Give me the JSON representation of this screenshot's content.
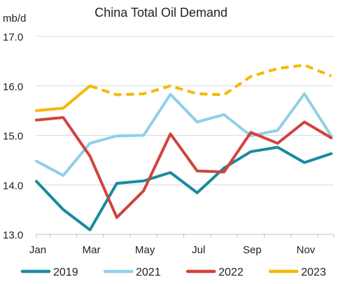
{
  "chart_data": {
    "type": "line",
    "title": "China Total Oil Demand",
    "ylabel": "mb/d",
    "xlabel": "",
    "ylim": [
      13.0,
      17.0
    ],
    "yticks": [
      "13.0",
      "14.0",
      "15.0",
      "16.0",
      "17.0"
    ],
    "categories": [
      "Jan",
      "Feb",
      "Mar",
      "Apr",
      "May",
      "Jun",
      "Jul",
      "Aug",
      "Sep",
      "Oct",
      "Nov",
      "Dec"
    ],
    "xtick_labels": [
      "Jan",
      "Mar",
      "May",
      "Jul",
      "Sep",
      "Nov"
    ],
    "grid": "horizontal",
    "legend_position": "bottom",
    "series": [
      {
        "name": "2019",
        "color": "#1a8a9e",
        "style": "solid",
        "values": [
          14.07,
          13.5,
          13.09,
          14.03,
          14.08,
          14.25,
          13.84,
          14.34,
          14.67,
          14.76,
          14.45,
          14.63
        ]
      },
      {
        "name": "2021",
        "color": "#8fd0e8",
        "style": "solid",
        "values": [
          14.48,
          14.19,
          14.84,
          14.99,
          15.0,
          15.83,
          15.27,
          15.42,
          14.99,
          15.1,
          15.84,
          14.99
        ]
      },
      {
        "name": "2022",
        "color": "#d0433f",
        "style": "solid",
        "values": [
          15.31,
          15.36,
          14.58,
          13.34,
          13.88,
          15.03,
          14.28,
          14.26,
          15.06,
          14.84,
          15.27,
          14.95
        ]
      },
      {
        "name": "2023",
        "color": "#f5b800",
        "style": "solid-then-dashed",
        "dash_from_index": 2,
        "values": [
          15.5,
          15.55,
          16.0,
          15.82,
          15.84,
          16.0,
          15.84,
          15.82,
          16.19,
          16.35,
          16.42,
          16.2
        ]
      }
    ]
  }
}
